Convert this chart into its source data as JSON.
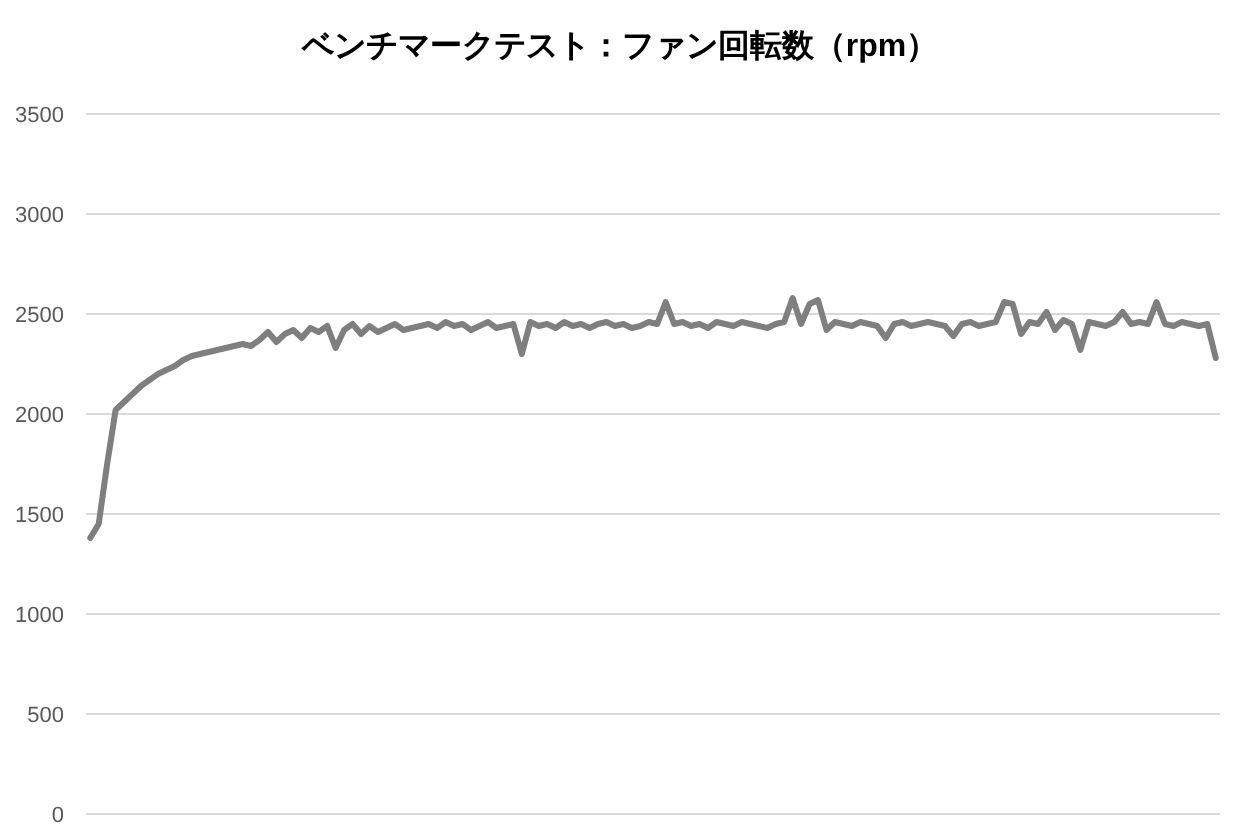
{
  "chart_data": {
    "type": "line",
    "title": "ベンチマークテスト：ファン回転数（rpm）",
    "color": "#7f7f7f",
    "ylim": [
      0,
      3500
    ],
    "yticks": [
      0,
      500,
      1000,
      1500,
      2000,
      2500,
      3000,
      3500
    ],
    "grid": "y",
    "tick_labels": "y",
    "marker": "none",
    "line_style": "solid",
    "categories": [
      null,
      null,
      null,
      null,
      null,
      null,
      null,
      null,
      null,
      null,
      null,
      null,
      null,
      null,
      null,
      null,
      null,
      null,
      null,
      null,
      null,
      null,
      null,
      null,
      null,
      null,
      null,
      null,
      null,
      null,
      null,
      null,
      null,
      null,
      null,
      null,
      null,
      null,
      null,
      null,
      null,
      null,
      null,
      null,
      null,
      null,
      null,
      null,
      null,
      null,
      null,
      null,
      null,
      null,
      null,
      null,
      null,
      null,
      null,
      null,
      null,
      null,
      null,
      null,
      null,
      null,
      null,
      null,
      null,
      null,
      null,
      null,
      null,
      null,
      null,
      null,
      null,
      null,
      null,
      null,
      null,
      null,
      null,
      null,
      null,
      null,
      null,
      null,
      null,
      null,
      null,
      null,
      null,
      null,
      null,
      null,
      null,
      null,
      null,
      null,
      null,
      null,
      null,
      null,
      null,
      null,
      null,
      null,
      null,
      null,
      null,
      null,
      null,
      null,
      null,
      null,
      null,
      null,
      null,
      null,
      null,
      null,
      null,
      null,
      null,
      null,
      null,
      null,
      null,
      null,
      null,
      null,
      null,
      null
    ],
    "values": [
      1380,
      1450,
      1750,
      2020,
      2060,
      2100,
      2140,
      2170,
      2200,
      2220,
      2240,
      2270,
      2290,
      2300,
      2310,
      2320,
      2330,
      2340,
      2350,
      2340,
      2370,
      2410,
      2360,
      2400,
      2420,
      2380,
      2430,
      2410,
      2440,
      2330,
      2420,
      2450,
      2400,
      2440,
      2410,
      2430,
      2450,
      2420,
      2430,
      2440,
      2450,
      2430,
      2460,
      2440,
      2450,
      2420,
      2440,
      2460,
      2430,
      2440,
      2450,
      2300,
      2460,
      2440,
      2450,
      2430,
      2460,
      2440,
      2450,
      2430,
      2450,
      2460,
      2440,
      2450,
      2430,
      2440,
      2460,
      2450,
      2560,
      2450,
      2460,
      2440,
      2450,
      2430,
      2460,
      2450,
      2440,
      2460,
      2450,
      2440,
      2430,
      2450,
      2460,
      2580,
      2450,
      2550,
      2570,
      2420,
      2460,
      2450,
      2440,
      2460,
      2450,
      2440,
      2380,
      2450,
      2460,
      2440,
      2450,
      2460,
      2450,
      2440,
      2390,
      2450,
      2460,
      2440,
      2450,
      2460,
      2560,
      2550,
      2400,
      2460,
      2450,
      2510,
      2420,
      2470,
      2450,
      2320,
      2460,
      2450,
      2440,
      2460,
      2510,
      2450,
      2460,
      2450,
      2560,
      2450,
      2440,
      2460,
      2450,
      2440,
      2450,
      2280
    ]
  }
}
